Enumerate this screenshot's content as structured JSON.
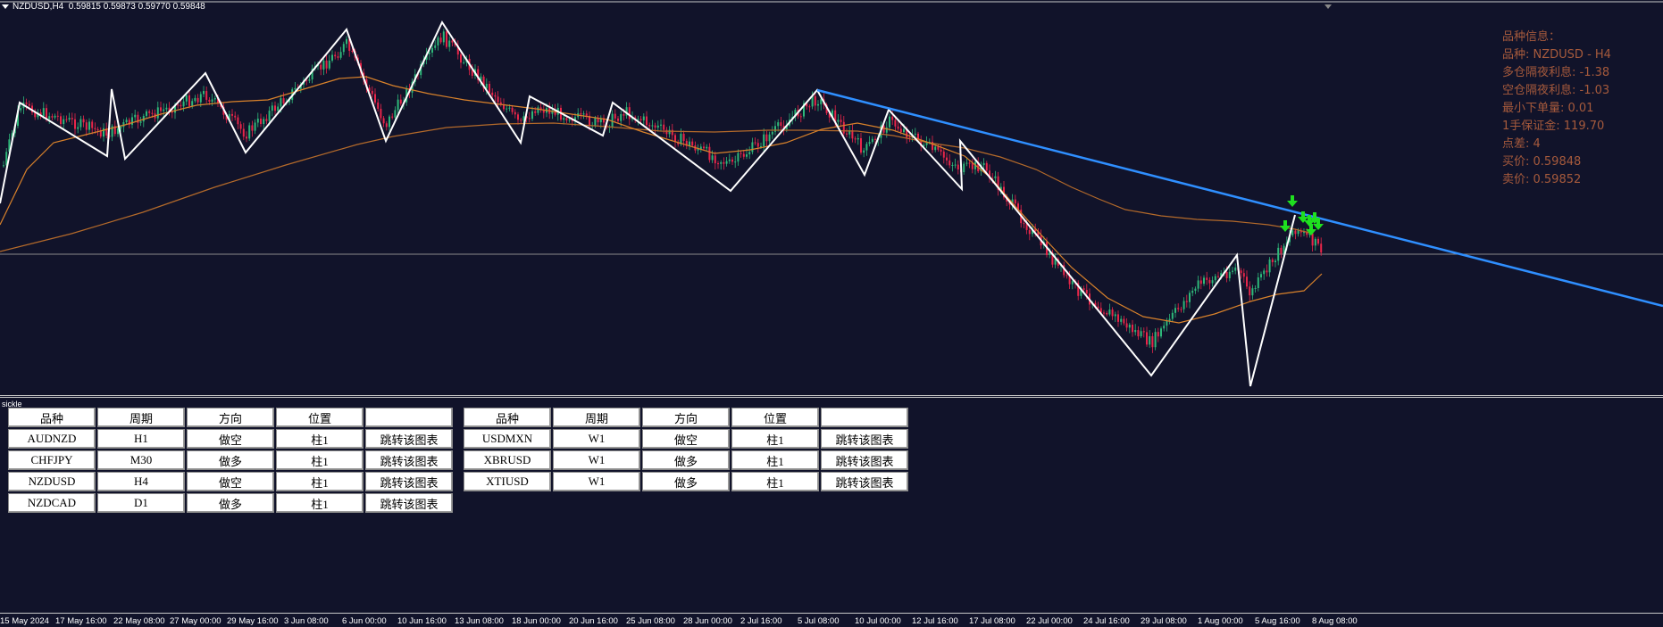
{
  "header": {
    "symbol_tf": "NZDUSD,H4",
    "ohlc": "0.59815 0.59873 0.59770 0.59848"
  },
  "info_panel": {
    "title": "品种信息：",
    "lines": [
      "品种: NZDUSD - H4",
      "多仓隔夜利息: -1.38",
      "空仓隔夜利息: -1.03",
      "最小下单量: 0.01",
      "1手保证金: 119.70",
      "点差: 4",
      "买价: 0.59848",
      "卖价: 0.59852"
    ]
  },
  "colors": {
    "background": "#11132a",
    "trendline": "#2f8fff",
    "zigzag": "#ffffff",
    "ma_fast": "#d9822b",
    "ma_slow": "#b46a2a",
    "candle_up": "#2eb87a",
    "candle_down": "#e8264a",
    "signal_arrow": "#1fe01f",
    "info_text": "#a65a3c"
  },
  "subwindow_name": "sickle",
  "tables": [
    {
      "headers": [
        "品种",
        "周期",
        "方向",
        "位置",
        ""
      ],
      "rows": [
        [
          "AUDNZD",
          "H1",
          "做空",
          "柱1",
          "跳转该图表"
        ],
        [
          "CHFJPY",
          "M30",
          "做多",
          "柱1",
          "跳转该图表"
        ],
        [
          "NZDUSD",
          "H4",
          "做空",
          "柱1",
          "跳转该图表"
        ],
        [
          "NZDCAD",
          "D1",
          "做多",
          "柱1",
          "跳转该图表"
        ]
      ]
    },
    {
      "headers": [
        "品种",
        "周期",
        "方向",
        "位置",
        ""
      ],
      "rows": [
        [
          "USDMXN",
          "W1",
          "做空",
          "柱1",
          "跳转该图表"
        ],
        [
          "XBRUSD",
          "W1",
          "做多",
          "柱1",
          "跳转该图表"
        ],
        [
          "XTIUSD",
          "W1",
          "做多",
          "柱1",
          "跳转该图表"
        ]
      ]
    }
  ],
  "time_axis": [
    "15 May 2024",
    "17 May 16:00",
    "22 May 08:00",
    "27 May 00:00",
    "29 May 16:00",
    "3 Jun 08:00",
    "6 Jun 00:00",
    "10 Jun 16:00",
    "13 Jun 08:00",
    "18 Jun 00:00",
    "20 Jun 16:00",
    "25 Jun 08:00",
    "28 Jun 00:00",
    "2 Jul 16:00",
    "5 Jul 08:00",
    "10 Jul 00:00",
    "12 Jul 16:00",
    "17 Jul 08:00",
    "22 Jul 00:00",
    "24 Jul 16:00",
    "29 Jul 08:00",
    "1 Aug 00:00",
    "5 Aug 16:00",
    "8 Aug 08:00"
  ]
}
